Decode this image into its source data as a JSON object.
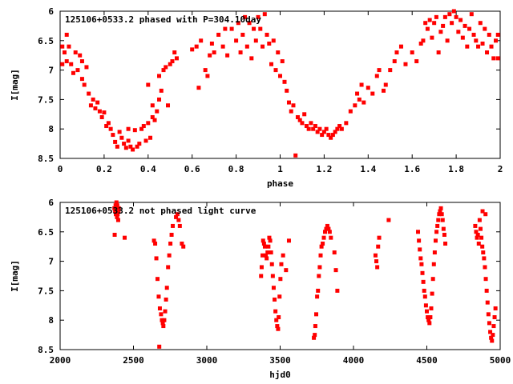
{
  "chart_data": [
    {
      "type": "scatter",
      "title": "125106+0533.2 phased with P=304.10day",
      "xlabel": "phase",
      "ylabel": "I[mag]",
      "xlim": [
        0,
        2
      ],
      "ylim": [
        6,
        8.5
      ],
      "y_inverted": true,
      "xticks": [
        0,
        0.2,
        0.4,
        0.6,
        0.8,
        1,
        1.2,
        1.4,
        1.6,
        1.8,
        2
      ],
      "xtick_labels": [
        "0",
        "0.2",
        "0.4",
        "0.6",
        "0.8",
        "1",
        "1.2",
        "1.4",
        "1.6",
        "1.8",
        "2"
      ],
      "yticks": [
        6,
        6.5,
        7,
        7.5,
        8,
        8.5
      ],
      "ytick_labels": [
        "6",
        "6.5",
        "7",
        "7.5",
        "8",
        "8.5"
      ],
      "grid": false,
      "marker_color": "#ff0000",
      "points": [
        [
          0.01,
          6.6
        ],
        [
          0.01,
          6.9
        ],
        [
          0.02,
          6.7
        ],
        [
          0.03,
          6.4
        ],
        [
          0.03,
          6.85
        ],
        [
          0.04,
          6.6
        ],
        [
          0.05,
          6.9
        ],
        [
          0.06,
          7.05
        ],
        [
          0.07,
          6.7
        ],
        [
          0.08,
          7.0
        ],
        [
          0.09,
          6.75
        ],
        [
          0.1,
          7.15
        ],
        [
          0.1,
          6.85
        ],
        [
          0.11,
          7.25
        ],
        [
          0.12,
          6.95
        ],
        [
          0.13,
          7.4
        ],
        [
          0.14,
          7.6
        ],
        [
          0.15,
          7.5
        ],
        [
          0.16,
          7.65
        ],
        [
          0.17,
          7.55
        ],
        [
          0.18,
          7.7
        ],
        [
          0.19,
          7.8
        ],
        [
          0.2,
          7.72
        ],
        [
          0.21,
          7.95
        ],
        [
          0.22,
          7.9
        ],
        [
          0.23,
          8.0
        ],
        [
          0.24,
          8.1
        ],
        [
          0.25,
          8.22
        ],
        [
          0.26,
          8.3
        ],
        [
          0.27,
          8.05
        ],
        [
          0.28,
          8.15
        ],
        [
          0.29,
          8.25
        ],
        [
          0.3,
          8.32
        ],
        [
          0.31,
          8.2
        ],
        [
          0.31,
          8.0
        ],
        [
          0.32,
          8.3
        ],
        [
          0.33,
          8.35
        ],
        [
          0.34,
          8.02
        ],
        [
          0.35,
          8.3
        ],
        [
          0.36,
          8.25
        ],
        [
          0.37,
          8.0
        ],
        [
          0.38,
          7.95
        ],
        [
          0.39,
          8.2
        ],
        [
          0.4,
          7.9
        ],
        [
          0.41,
          8.15
        ],
        [
          0.42,
          7.8
        ],
        [
          0.43,
          7.85
        ],
        [
          0.44,
          7.7
        ],
        [
          0.45,
          7.5
        ],
        [
          0.46,
          7.35
        ],
        [
          0.47,
          7.0
        ],
        [
          0.48,
          6.95
        ],
        [
          0.49,
          7.6
        ],
        [
          0.5,
          6.9
        ],
        [
          0.51,
          6.85
        ],
        [
          0.52,
          6.7
        ],
        [
          0.53,
          6.8
        ],
        [
          0.45,
          7.1
        ],
        [
          0.42,
          7.6
        ],
        [
          0.4,
          7.25
        ],
        [
          0.6,
          6.65
        ],
        [
          0.62,
          6.6
        ],
        [
          0.63,
          7.3
        ],
        [
          0.64,
          6.5
        ],
        [
          0.66,
          7.0
        ],
        [
          0.67,
          7.1
        ],
        [
          0.68,
          6.75
        ],
        [
          0.69,
          6.55
        ],
        [
          0.7,
          6.7
        ],
        [
          0.72,
          6.4
        ],
        [
          0.74,
          6.6
        ],
        [
          0.75,
          6.3
        ],
        [
          0.76,
          6.75
        ],
        [
          0.78,
          6.3
        ],
        [
          0.8,
          6.5
        ],
        [
          0.81,
          6.2
        ],
        [
          0.82,
          6.7
        ],
        [
          0.83,
          6.4
        ],
        [
          0.84,
          6.1
        ],
        [
          0.85,
          6.6
        ],
        [
          0.86,
          6.2
        ],
        [
          0.87,
          6.8
        ],
        [
          0.88,
          6.3
        ],
        [
          0.89,
          6.5
        ],
        [
          0.9,
          6.1
        ],
        [
          0.91,
          6.3
        ],
        [
          0.92,
          6.6
        ],
        [
          0.93,
          6.05
        ],
        [
          0.94,
          6.4
        ],
        [
          0.95,
          6.55
        ],
        [
          0.96,
          6.9
        ],
        [
          0.97,
          6.5
        ],
        [
          0.98,
          7.0
        ],
        [
          0.99,
          6.7
        ],
        [
          1.0,
          7.1
        ],
        [
          1.01,
          6.85
        ],
        [
          1.02,
          7.2
        ],
        [
          1.03,
          7.35
        ],
        [
          1.04,
          7.55
        ],
        [
          1.05,
          7.7
        ],
        [
          1.06,
          7.6
        ],
        [
          1.07,
          8.45
        ],
        [
          1.08,
          7.8
        ],
        [
          1.09,
          7.85
        ],
        [
          1.1,
          7.9
        ],
        [
          1.11,
          7.75
        ],
        [
          1.12,
          7.95
        ],
        [
          1.13,
          8.0
        ],
        [
          1.14,
          7.9
        ],
        [
          1.15,
          8.0
        ],
        [
          1.16,
          7.95
        ],
        [
          1.17,
          8.05
        ],
        [
          1.18,
          8.0
        ],
        [
          1.19,
          8.1
        ],
        [
          1.2,
          8.05
        ],
        [
          1.21,
          8.0
        ],
        [
          1.22,
          8.1
        ],
        [
          1.23,
          8.15
        ],
        [
          1.24,
          8.1
        ],
        [
          1.25,
          8.05
        ],
        [
          1.26,
          8.0
        ],
        [
          1.27,
          7.95
        ],
        [
          1.28,
          8.0
        ],
        [
          1.3,
          7.9
        ],
        [
          1.32,
          7.7
        ],
        [
          1.34,
          7.6
        ],
        [
          1.35,
          7.4
        ],
        [
          1.36,
          7.5
        ],
        [
          1.37,
          7.25
        ],
        [
          1.38,
          7.55
        ],
        [
          1.4,
          7.3
        ],
        [
          1.42,
          7.4
        ],
        [
          1.44,
          7.1
        ],
        [
          1.45,
          7.0
        ],
        [
          1.47,
          7.35
        ],
        [
          1.48,
          7.25
        ],
        [
          1.5,
          7.0
        ],
        [
          1.52,
          6.85
        ],
        [
          1.53,
          6.7
        ],
        [
          1.55,
          6.6
        ],
        [
          1.57,
          6.9
        ],
        [
          1.6,
          6.7
        ],
        [
          1.62,
          6.85
        ],
        [
          1.64,
          6.55
        ],
        [
          1.65,
          6.5
        ],
        [
          1.66,
          6.2
        ],
        [
          1.67,
          6.3
        ],
        [
          1.68,
          6.15
        ],
        [
          1.69,
          6.45
        ],
        [
          1.7,
          6.2
        ],
        [
          1.71,
          6.1
        ],
        [
          1.72,
          6.7
        ],
        [
          1.73,
          6.35
        ],
        [
          1.74,
          6.25
        ],
        [
          1.75,
          6.1
        ],
        [
          1.76,
          6.5
        ],
        [
          1.77,
          6.05
        ],
        [
          1.78,
          6.2
        ],
        [
          1.79,
          6.0
        ],
        [
          1.8,
          6.1
        ],
        [
          1.81,
          6.35
        ],
        [
          1.82,
          6.15
        ],
        [
          1.83,
          6.45
        ],
        [
          1.84,
          6.25
        ],
        [
          1.85,
          6.6
        ],
        [
          1.86,
          6.3
        ],
        [
          1.87,
          6.05
        ],
        [
          1.88,
          6.4
        ],
        [
          1.89,
          6.5
        ],
        [
          1.9,
          6.6
        ],
        [
          1.91,
          6.2
        ],
        [
          1.92,
          6.55
        ],
        [
          1.93,
          6.3
        ],
        [
          1.94,
          6.7
        ],
        [
          1.95,
          6.4
        ],
        [
          1.96,
          6.6
        ],
        [
          1.97,
          6.8
        ],
        [
          1.98,
          6.5
        ],
        [
          1.99,
          6.8
        ],
        [
          1.99,
          6.4
        ]
      ]
    },
    {
      "type": "scatter",
      "title": "125106+0533.2 not phased light curve",
      "xlabel": "hjd0",
      "ylabel": "I[mag]",
      "xlim": [
        2000,
        5000
      ],
      "ylim": [
        6,
        8.5
      ],
      "y_inverted": true,
      "xticks": [
        2000,
        2500,
        3000,
        3500,
        4000,
        4500,
        5000
      ],
      "xtick_labels": [
        "2000",
        "2500",
        "3000",
        "3500",
        "4000",
        "4500",
        "5000"
      ],
      "yticks": [
        6,
        6.5,
        7,
        7.5,
        8,
        8.5
      ],
      "ytick_labels": [
        "6",
        "6.5",
        "7",
        "7.5",
        "8",
        "8.5"
      ],
      "grid": false,
      "marker_color": "#ff0000",
      "points": [
        [
          2370,
          6.1
        ],
        [
          2375,
          6.15
        ],
        [
          2378,
          6.05
        ],
        [
          2380,
          6.2
        ],
        [
          2382,
          6.1
        ],
        [
          2384,
          6.0
        ],
        [
          2386,
          6.15
        ],
        [
          2388,
          6.25
        ],
        [
          2390,
          6.05
        ],
        [
          2392,
          6.2
        ],
        [
          2394,
          6.1
        ],
        [
          2396,
          6.3
        ],
        [
          2398,
          6.15
        ],
        [
          2400,
          6.1
        ],
        [
          2372,
          6.55
        ],
        [
          2440,
          6.6
        ],
        [
          2640,
          6.65
        ],
        [
          2648,
          6.7
        ],
        [
          2656,
          6.95
        ],
        [
          2664,
          7.3
        ],
        [
          2672,
          7.6
        ],
        [
          2680,
          7.8
        ],
        [
          2688,
          7.9
        ],
        [
          2694,
          8.0
        ],
        [
          2700,
          8.05
        ],
        [
          2704,
          8.1
        ],
        [
          2710,
          8.0
        ],
        [
          2716,
          7.85
        ],
        [
          2722,
          7.65
        ],
        [
          2728,
          7.45
        ],
        [
          2736,
          7.1
        ],
        [
          2744,
          6.9
        ],
        [
          2752,
          6.7
        ],
        [
          2760,
          6.55
        ],
        [
          2768,
          6.4
        ],
        [
          2676,
          8.45
        ],
        [
          2790,
          6.25
        ],
        [
          2800,
          6.2
        ],
        [
          2808,
          6.3
        ],
        [
          2816,
          6.4
        ],
        [
          2830,
          6.7
        ],
        [
          2840,
          6.75
        ],
        [
          3370,
          7.25
        ],
        [
          3374,
          7.1
        ],
        [
          3380,
          6.9
        ],
        [
          3384,
          6.65
        ],
        [
          3390,
          6.7
        ],
        [
          3396,
          6.75
        ],
        [
          3402,
          6.9
        ],
        [
          3408,
          6.95
        ],
        [
          3414,
          6.85
        ],
        [
          3420,
          6.75
        ],
        [
          3426,
          6.6
        ],
        [
          3432,
          6.65
        ],
        [
          3438,
          6.85
        ],
        [
          3444,
          7.05
        ],
        [
          3450,
          7.25
        ],
        [
          3456,
          7.45
        ],
        [
          3462,
          7.65
        ],
        [
          3468,
          7.85
        ],
        [
          3474,
          8.0
        ],
        [
          3480,
          8.1
        ],
        [
          3486,
          8.15
        ],
        [
          3490,
          7.95
        ],
        [
          3496,
          7.6
        ],
        [
          3502,
          7.3
        ],
        [
          3508,
          7.05
        ],
        [
          3520,
          6.9
        ],
        [
          3540,
          7.15
        ],
        [
          3560,
          6.65
        ],
        [
          3730,
          8.3
        ],
        [
          3736,
          8.25
        ],
        [
          3740,
          8.1
        ],
        [
          3746,
          7.9
        ],
        [
          3752,
          7.6
        ],
        [
          3758,
          7.5
        ],
        [
          3764,
          7.25
        ],
        [
          3770,
          7.1
        ],
        [
          3776,
          6.9
        ],
        [
          3782,
          6.75
        ],
        [
          3790,
          6.7
        ],
        [
          3798,
          6.6
        ],
        [
          3806,
          6.5
        ],
        [
          3814,
          6.45
        ],
        [
          3822,
          6.4
        ],
        [
          3830,
          6.45
        ],
        [
          3838,
          6.5
        ],
        [
          3846,
          6.6
        ],
        [
          3870,
          6.85
        ],
        [
          3880,
          7.15
        ],
        [
          3890,
          7.5
        ],
        [
          4150,
          6.9
        ],
        [
          4156,
          7.0
        ],
        [
          4162,
          7.1
        ],
        [
          4168,
          6.75
        ],
        [
          4175,
          6.6
        ],
        [
          4240,
          6.3
        ],
        [
          4440,
          6.5
        ],
        [
          4446,
          6.65
        ],
        [
          4452,
          6.8
        ],
        [
          4458,
          6.95
        ],
        [
          4464,
          7.05
        ],
        [
          4470,
          7.2
        ],
        [
          4476,
          7.35
        ],
        [
          4482,
          7.5
        ],
        [
          4488,
          7.6
        ],
        [
          4494,
          7.75
        ],
        [
          4500,
          7.85
        ],
        [
          4506,
          7.95
        ],
        [
          4512,
          8.0
        ],
        [
          4518,
          8.05
        ],
        [
          4524,
          7.95
        ],
        [
          4530,
          7.8
        ],
        [
          4536,
          7.55
        ],
        [
          4542,
          7.3
        ],
        [
          4548,
          7.05
        ],
        [
          4554,
          6.85
        ],
        [
          4560,
          6.65
        ],
        [
          4566,
          6.5
        ],
        [
          4572,
          6.4
        ],
        [
          4578,
          6.3
        ],
        [
          4584,
          6.2
        ],
        [
          4590,
          6.15
        ],
        [
          4596,
          6.1
        ],
        [
          4602,
          6.2
        ],
        [
          4608,
          6.3
        ],
        [
          4614,
          6.45
        ],
        [
          4620,
          6.55
        ],
        [
          4626,
          6.7
        ],
        [
          4830,
          6.4
        ],
        [
          4836,
          6.5
        ],
        [
          4842,
          6.6
        ],
        [
          4848,
          6.55
        ],
        [
          4854,
          6.7
        ],
        [
          4860,
          6.3
        ],
        [
          4866,
          6.45
        ],
        [
          4872,
          6.6
        ],
        [
          4878,
          6.75
        ],
        [
          4884,
          6.85
        ],
        [
          4890,
          6.95
        ],
        [
          4896,
          7.1
        ],
        [
          4902,
          7.3
        ],
        [
          4908,
          7.5
        ],
        [
          4914,
          7.7
        ],
        [
          4920,
          7.9
        ],
        [
          4926,
          8.05
        ],
        [
          4932,
          8.2
        ],
        [
          4938,
          8.3
        ],
        [
          4944,
          8.35
        ],
        [
          4950,
          8.25
        ],
        [
          4956,
          8.1
        ],
        [
          4962,
          7.95
        ],
        [
          4968,
          7.8
        ],
        [
          4900,
          6.2
        ],
        [
          4880,
          6.15
        ]
      ]
    }
  ]
}
